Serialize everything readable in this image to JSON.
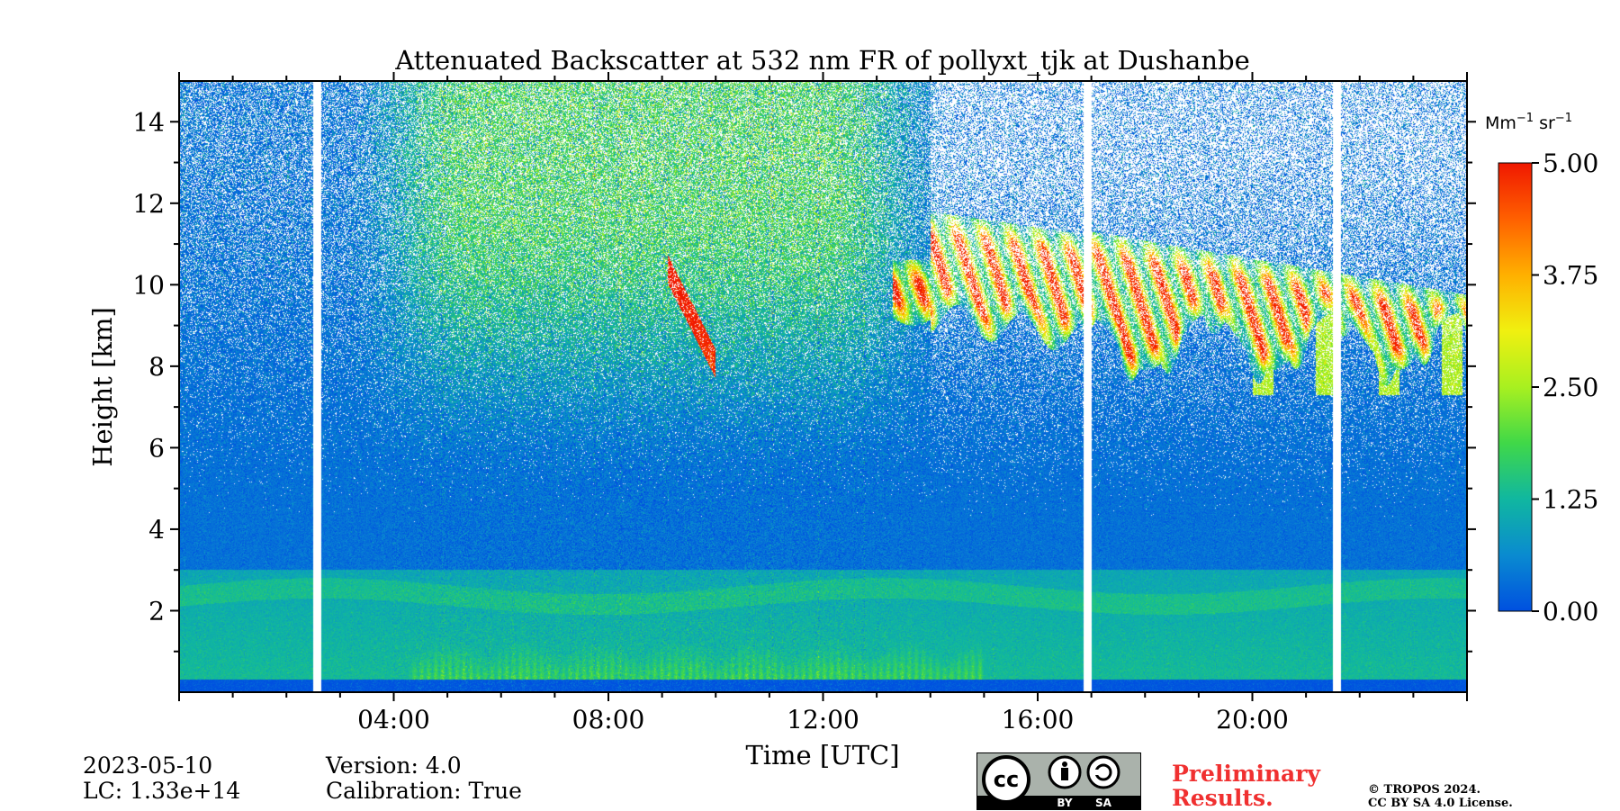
{
  "chart_data": {
    "type": "heatmap",
    "title": "Attenuated Backscatter at 532 nm FR of pollyxt_tjk at Dushanbe",
    "xlabel": "Time [UTC]",
    "ylabel": "Height [km]",
    "xlim_hours": [
      0,
      24
    ],
    "ylim_km": [
      0,
      15
    ],
    "x_ticks": [
      {
        "hour": 4,
        "label": "04:00"
      },
      {
        "hour": 8,
        "label": "08:00"
      },
      {
        "hour": 12,
        "label": "12:00"
      },
      {
        "hour": 16,
        "label": "16:00"
      },
      {
        "hour": 20,
        "label": "20:00"
      }
    ],
    "y_ticks": [
      {
        "km": 2,
        "label": "2"
      },
      {
        "km": 4,
        "label": "4"
      },
      {
        "km": 6,
        "label": "6"
      },
      {
        "km": 8,
        "label": "8"
      },
      {
        "km": 10,
        "label": "10"
      },
      {
        "km": 12,
        "label": "12"
      },
      {
        "km": 14,
        "label": "14"
      }
    ],
    "colorbar": {
      "unit_base": "Mm",
      "unit_exp1": "−1",
      "unit_mid": "sr",
      "unit_exp2": "−1",
      "range": [
        0,
        5
      ],
      "ticks": [
        {
          "value": 0,
          "label": "0.00"
        },
        {
          "value": 1.25,
          "label": "1.25"
        },
        {
          "value": 2.5,
          "label": "2.50"
        },
        {
          "value": 3.75,
          "label": "3.75"
        },
        {
          "value": 5,
          "label": "5.00"
        }
      ],
      "colors": [
        "#0050e0",
        "#0a8bd0",
        "#10b7a0",
        "#40d848",
        "#a8f020",
        "#f0f010",
        "#ffb000",
        "#ff6000",
        "#f01800"
      ]
    },
    "data_gaps_hours": [
      [
        2.5,
        2.65
      ],
      [
        16.85,
        17.0
      ],
      [
        21.5,
        21.65
      ]
    ],
    "features": [
      {
        "name": "boundary layer aerosol",
        "time_range_hours": [
          0,
          24
        ],
        "height_range_km": [
          0,
          3
        ],
        "backscatter_approx": 1.0
      },
      {
        "name": "surface layer",
        "time_range_hours": [
          0,
          24
        ],
        "height_range_km": [
          0,
          0.3
        ],
        "backscatter_approx": 0.3
      },
      {
        "name": "dust near surface",
        "time_range_hours": [
          4.3,
          15.0
        ],
        "height_range_km": [
          0.2,
          1.5
        ],
        "backscatter_approx": 1.8
      },
      {
        "name": "upper-level signal",
        "time_range_hours": [
          4.0,
          14.0
        ],
        "height_range_km": [
          8.0,
          15.0
        ],
        "backscatter_approx": 2.5
      },
      {
        "name": "cirrus streak",
        "time_range_hours": [
          9.1,
          10.0
        ],
        "height_range_km": [
          7.8,
          10.5
        ],
        "backscatter_approx": 4.5
      },
      {
        "name": "cirrus layer",
        "time_range_hours": [
          13.3,
          24.0
        ],
        "height_range_km": [
          7.5,
          11.8
        ],
        "backscatter_approx": 3.8
      }
    ]
  },
  "footer": {
    "date": "2023-05-10",
    "lc": "LC: 1.33e+14",
    "version": "Version: 4.0",
    "calibration": "Calibration: True",
    "preliminary_line1": "Preliminary",
    "preliminary_line2": "Results.",
    "copyright_line1": "© TROPOS 2024.",
    "copyright_line2": "CC BY SA 4.0 License.",
    "license_badge_by": "BY",
    "license_badge_sa": "SA",
    "license_badge_cc": "cc"
  }
}
